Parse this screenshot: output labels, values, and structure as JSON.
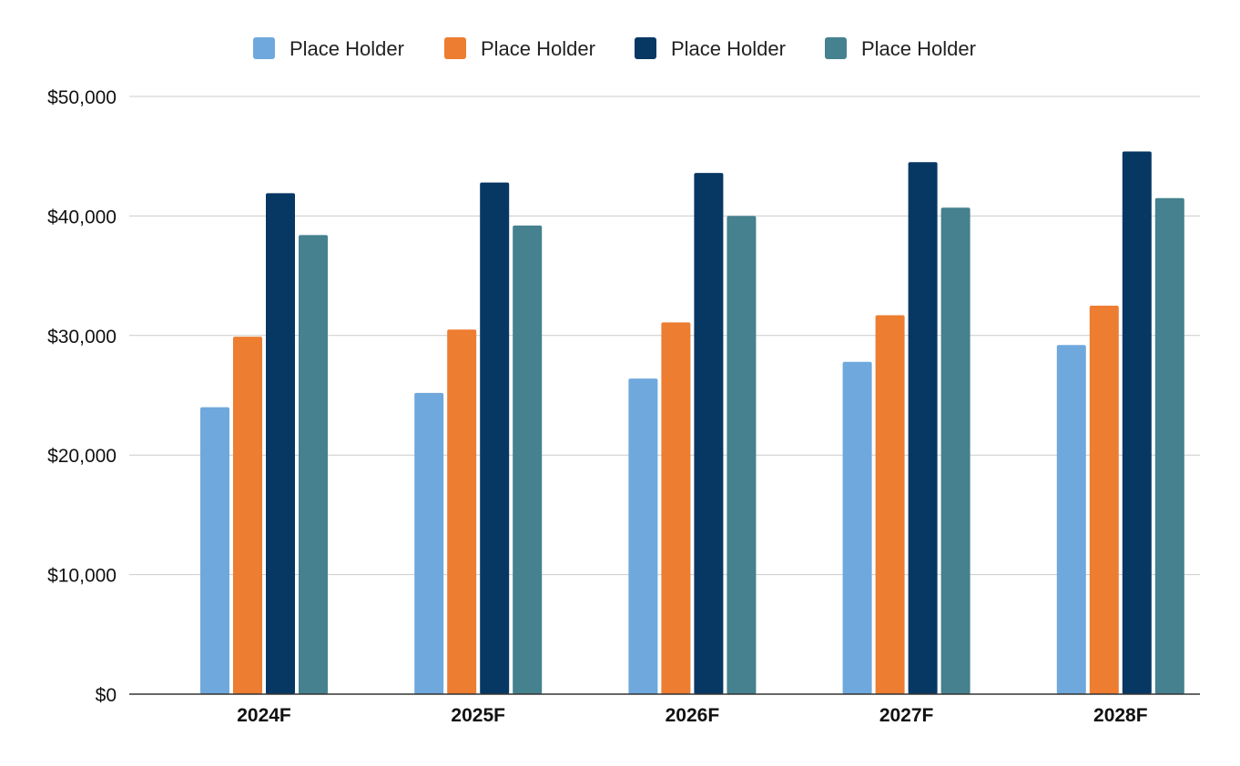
{
  "chart_data": {
    "type": "bar",
    "categories": [
      "2024F",
      "2025F",
      "2026F",
      "2027F",
      "2028F"
    ],
    "series": [
      {
        "name": "Place Holder",
        "color": "#6fa8dc",
        "values": [
          24000,
          25200,
          26400,
          27800,
          29200
        ]
      },
      {
        "name": "Place Holder",
        "color": "#ed7d31",
        "values": [
          29900,
          30500,
          31100,
          31700,
          32500
        ]
      },
      {
        "name": "Place Holder",
        "color": "#073763",
        "values": [
          41900,
          42800,
          43600,
          44500,
          45400
        ]
      },
      {
        "name": "Place Holder",
        "color": "#45818e",
        "values": [
          38400,
          39200,
          40000,
          40700,
          41500
        ]
      }
    ],
    "yticks": [
      "$0",
      "$10,000",
      "$20,000",
      "$30,000",
      "$40,000",
      "$50,000"
    ],
    "ylim": [
      0,
      50000
    ],
    "grid": true,
    "legend_position": "top"
  }
}
